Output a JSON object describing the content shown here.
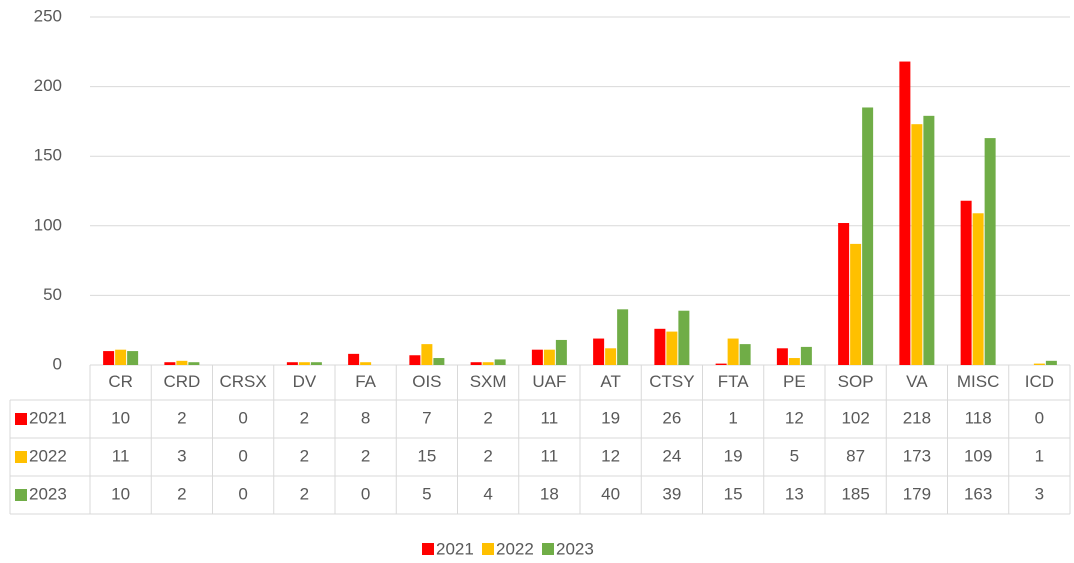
{
  "chart_data": {
    "type": "bar",
    "categories": [
      "CR",
      "CRD",
      "CRSX",
      "DV",
      "FA",
      "OIS",
      "SXM",
      "UAF",
      "AT",
      "CTSY",
      "FTA",
      "PE",
      "SOP",
      "VA",
      "MISC",
      "ICD"
    ],
    "series": [
      {
        "name": "2021",
        "color": "#ff0000",
        "values": [
          10,
          2,
          0,
          2,
          8,
          7,
          2,
          11,
          19,
          26,
          1,
          12,
          102,
          218,
          118,
          0
        ]
      },
      {
        "name": "2022",
        "color": "#ffc000",
        "values": [
          11,
          3,
          0,
          2,
          2,
          15,
          2,
          11,
          12,
          24,
          19,
          5,
          87,
          173,
          109,
          1
        ]
      },
      {
        "name": "2023",
        "color": "#70ad47",
        "values": [
          10,
          2,
          0,
          2,
          0,
          5,
          4,
          18,
          40,
          39,
          15,
          13,
          185,
          179,
          163,
          3
        ]
      }
    ],
    "ylim": [
      0,
      250
    ],
    "yticks": [
      0,
      50,
      100,
      150,
      200,
      250
    ],
    "grid": true,
    "legend": "bottom"
  }
}
